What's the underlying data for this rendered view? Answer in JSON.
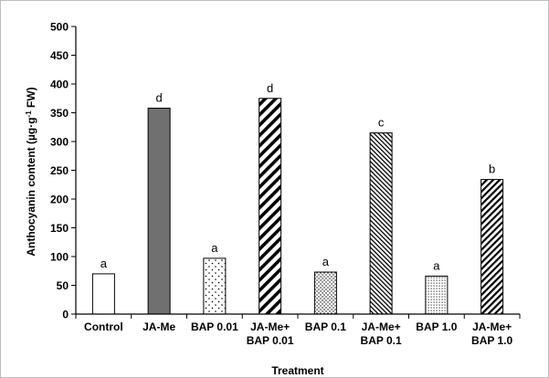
{
  "chart_data": {
    "type": "bar",
    "xlabel": "Treatment",
    "ylabel": "Anthocyanin content  (µg·g",
    "ylabel_sup": "-1",
    "ylabel_end": " FW)",
    "ylim": [
      0,
      500
    ],
    "yticks": [
      0,
      50,
      100,
      150,
      200,
      250,
      300,
      350,
      400,
      450,
      500
    ],
    "grid": false,
    "categories": [
      [
        "Control"
      ],
      [
        "JA-Me"
      ],
      [
        "BAP 0.01"
      ],
      [
        "JA-Me+",
        "BAP 0.01"
      ],
      [
        "BAP 0.1"
      ],
      [
        "JA-Me+",
        "BAP 0.1"
      ],
      [
        "BAP 1.0"
      ],
      [
        "JA-Me+",
        "BAP 1.0"
      ]
    ],
    "values": [
      70,
      358,
      97,
      375,
      73,
      315,
      66,
      234
    ],
    "letters": [
      "a",
      "d",
      "a",
      "d",
      "a",
      "c",
      "a",
      "b"
    ],
    "fills": [
      "white",
      "dark-gray",
      "sparse-dots",
      "wide-diagonal",
      "dense-dots",
      "fine-diagonal",
      "fine-dots",
      "medium-diagonal"
    ],
    "colors": {
      "bar_stroke": "#000000",
      "solid_fill": "#707070",
      "axis": "#000000"
    }
  }
}
